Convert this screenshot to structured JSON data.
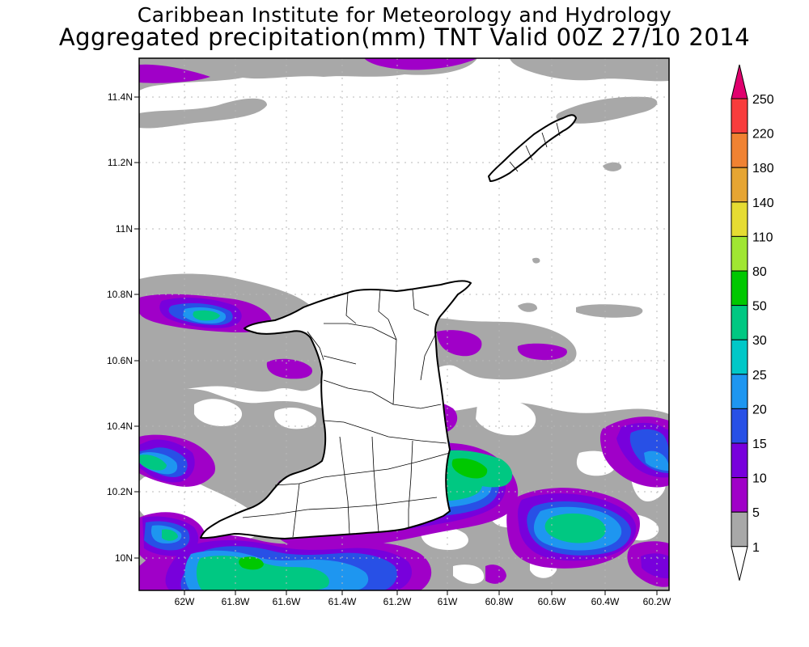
{
  "header": {
    "title": "Caribbean Institute for Meteorology and Hydrology",
    "subtitle": "Aggregated precipitation(mm) TNT Valid 00Z 27/10 2014"
  },
  "axes": {
    "lat_labels": [
      "11.4N",
      "11.2N",
      "11N",
      "10.8N",
      "10.6N",
      "10.4N",
      "10.2N",
      "10N"
    ],
    "lon_labels": [
      "62W",
      "61.8W",
      "61.6W",
      "61.4W",
      "61.2W",
      "61W",
      "60.8W",
      "60.6W",
      "60.4W",
      "60.2W"
    ],
    "lat_values": [
      11.4,
      11.2,
      11.0,
      10.8,
      10.6,
      10.4,
      10.2,
      10.0
    ],
    "lon_values": [
      -62.0,
      -61.8,
      -61.6,
      -61.4,
      -61.2,
      -61.0,
      -60.8,
      -60.6,
      -60.4,
      -60.2
    ]
  },
  "colorbar": {
    "levels": [
      "250",
      "220",
      "180",
      "140",
      "110",
      "80",
      "50",
      "30",
      "25",
      "20",
      "15",
      "10",
      "5",
      "1"
    ],
    "colors": [
      "#e0006e",
      "#f83c3c",
      "#f08232",
      "#e6a532",
      "#e6dc32",
      "#a0e632",
      "#00c800",
      "#00c882",
      "#00c8c8",
      "#1e96f0",
      "#2850e6",
      "#7800dc",
      "#a000c8",
      "#a8a8a8"
    ],
    "unit": "mm"
  },
  "colors": {
    "lvl1": "#a8a8a8",
    "lvl5": "#a000c8",
    "lvl10": "#7800dc",
    "lvl15": "#2850e6",
    "lvl20": "#1e96f0",
    "lvl25": "#00c8c8",
    "lvl30": "#00c882",
    "lvl50": "#00c800"
  }
}
